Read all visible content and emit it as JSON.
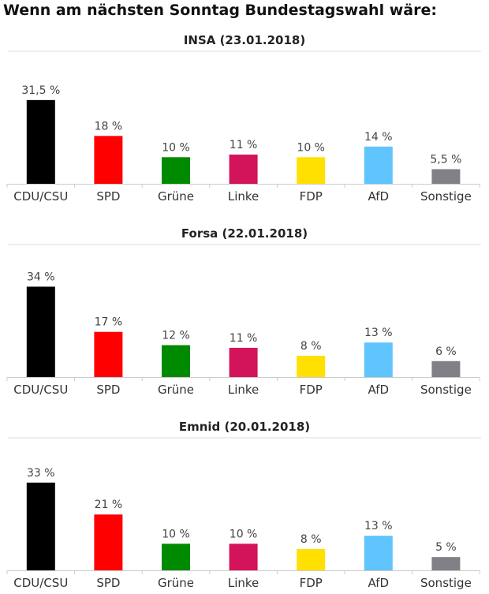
{
  "title": "Wenn am nächsten Sonntag Bundestagswahl wäre:",
  "colors": {
    "CDU/CSU": "#000000",
    "SPD": "#ff0000",
    "Grüne": "#008a00",
    "Linke": "#d4145a",
    "FDP": "#ffe000",
    "AfD": "#60c4ff",
    "Sonstige": "#808086"
  },
  "chart_data": [
    {
      "type": "bar",
      "title": "INSA (23.01.2018)",
      "categories": [
        "CDU/CSU",
        "SPD",
        "Grüne",
        "Linke",
        "FDP",
        "AfD",
        "Sonstige"
      ],
      "values": [
        31.5,
        18,
        10,
        11,
        10,
        14,
        5.5
      ],
      "labels": [
        "31,5 %",
        "18 %",
        "10 %",
        "11 %",
        "10 %",
        "14 %",
        "5,5 %"
      ],
      "xlabel": "",
      "ylabel": "",
      "grid": false
    },
    {
      "type": "bar",
      "title": "Forsa (22.01.2018)",
      "categories": [
        "CDU/CSU",
        "SPD",
        "Grüne",
        "Linke",
        "FDP",
        "AfD",
        "Sonstige"
      ],
      "values": [
        34,
        17,
        12,
        11,
        8,
        13,
        6
      ],
      "labels": [
        "34 %",
        "17 %",
        "12 %",
        "11 %",
        "8 %",
        "13 %",
        "6 %"
      ],
      "xlabel": "",
      "ylabel": "",
      "grid": false
    },
    {
      "type": "bar",
      "title": "Emnid (20.01.2018)",
      "categories": [
        "CDU/CSU",
        "SPD",
        "Grüne",
        "Linke",
        "FDP",
        "AfD",
        "Sonstige"
      ],
      "values": [
        33,
        21,
        10,
        10,
        8,
        13,
        5
      ],
      "labels": [
        "33 %",
        "21 %",
        "10 %",
        "10 %",
        "8 %",
        "13 %",
        "5 %"
      ],
      "xlabel": "",
      "ylabel": "",
      "grid": false
    }
  ]
}
